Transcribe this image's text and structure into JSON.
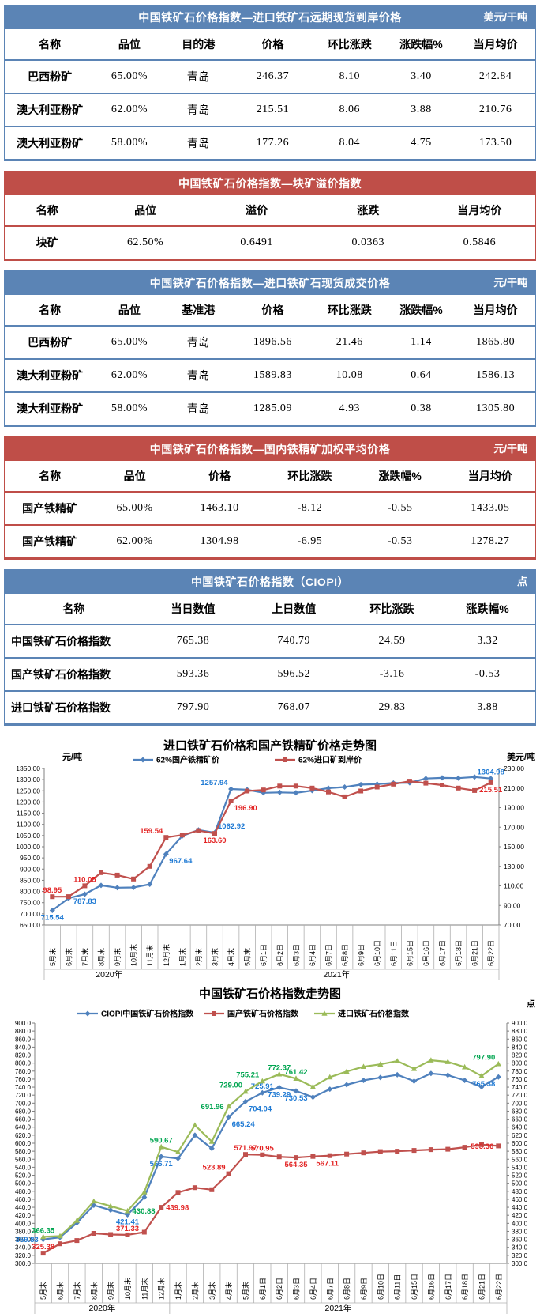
{
  "tables": [
    {
      "theme": "blue",
      "accent": "#5b84b5",
      "title": "中国铁矿石价格指数—进口铁矿石远期现货到岸价格",
      "unit": "美元/干吨",
      "headers": [
        "名称",
        "品位",
        "目的港",
        "价格",
        "环比涨跌",
        "涨跌幅%",
        "当月均价"
      ],
      "rows": [
        [
          "巴西粉矿",
          "65.00%",
          "青岛",
          "246.37",
          "8.10",
          "3.40",
          "242.84"
        ],
        [
          "澳大利亚粉矿",
          "62.00%",
          "青岛",
          "215.51",
          "8.06",
          "3.88",
          "210.76"
        ],
        [
          "澳大利亚粉矿",
          "58.00%",
          "青岛",
          "177.26",
          "8.04",
          "4.75",
          "173.50"
        ]
      ]
    },
    {
      "theme": "red",
      "accent": "#bf4e48",
      "title": "中国铁矿石价格指数—块矿溢价指数",
      "unit": "",
      "headers": [
        "名称",
        "品位",
        "溢价",
        "涨跌",
        "当月均价"
      ],
      "rows": [
        [
          "块矿",
          "62.50%",
          "0.6491",
          "0.0363",
          "0.5846"
        ]
      ]
    },
    {
      "theme": "blue",
      "accent": "#5b84b5",
      "title": "中国铁矿石价格指数—进口铁矿石现货成交价格",
      "unit": "元/干吨",
      "headers": [
        "名称",
        "品位",
        "基准港",
        "价格",
        "环比涨跌",
        "涨跌幅%",
        "当月均价"
      ],
      "rows": [
        [
          "巴西粉矿",
          "65.00%",
          "青岛",
          "1896.56",
          "21.46",
          "1.14",
          "1865.80"
        ],
        [
          "澳大利亚粉矿",
          "62.00%",
          "青岛",
          "1589.83",
          "10.08",
          "0.64",
          "1586.13"
        ],
        [
          "澳大利亚粉矿",
          "58.00%",
          "青岛",
          "1285.09",
          "4.93",
          "0.38",
          "1305.80"
        ]
      ]
    },
    {
      "theme": "red",
      "accent": "#bf4e48",
      "title": "中国铁矿石价格指数—国内铁精矿加权平均价格",
      "unit": "元/干吨",
      "headers": [
        "名称",
        "品位",
        "价格",
        "环比涨跌",
        "涨跌幅%",
        "当月均价"
      ],
      "rows": [
        [
          "国产铁精矿",
          "65.00%",
          "1463.10",
          "-8.12",
          "-0.55",
          "1433.05"
        ],
        [
          "国产铁精矿",
          "62.00%",
          "1304.98",
          "-6.95",
          "-0.53",
          "1278.27"
        ]
      ]
    },
    {
      "theme": "blue",
      "accent": "#5b84b5",
      "title": "中国铁矿石价格指数（CIOPI）",
      "unit": "点",
      "headers": [
        "名称",
        "当日数值",
        "上日数值",
        "环比涨跌",
        "涨跌幅%"
      ],
      "rows": [
        [
          "中国铁矿石价格指数",
          "765.38",
          "740.79",
          "24.59",
          "3.32"
        ],
        [
          "国产铁矿石价格指数",
          "593.36",
          "596.52",
          "-3.16",
          "-0.53"
        ],
        [
          "进口铁矿石价格指数",
          "797.90",
          "768.07",
          "29.83",
          "3.88"
        ]
      ]
    }
  ],
  "chart_data": [
    {
      "type": "line",
      "title": "进口铁矿石价格和国产铁精矿价格走势图",
      "left_axis": {
        "label": "元/吨",
        "min": 650,
        "max": 1350,
        "step": 50,
        "decimals": 2
      },
      "right_axis": {
        "label": "美元/吨",
        "min": 70,
        "max": 230,
        "step": 20,
        "decimals": 2
      },
      "categories": [
        "5月末",
        "6月末",
        "7月末",
        "8月末",
        "9月末",
        "10月末",
        "11月末",
        "12月末",
        "1月末",
        "2月末",
        "3月末",
        "4月末",
        "5月末",
        "6月1日",
        "6月2日",
        "6月3日",
        "6月4日",
        "6月7日",
        "6月8日",
        "6月9日",
        "6月10日",
        "6月11日",
        "6月15日",
        "6月16日",
        "6月17日",
        "6月18日",
        "6月21日",
        "6月22日"
      ],
      "year_groups": [
        {
          "label": "2020年",
          "from": 0,
          "to": 7
        },
        {
          "label": "2021年",
          "from": 8,
          "to": 27
        }
      ],
      "legend_position": "top",
      "grid": false,
      "series": [
        {
          "name": "62%国产铁精矿价",
          "axis": "left",
          "color": "#4f81bd",
          "label_color": "#1f7ad4",
          "marker": "diamond",
          "values": [
            715.54,
            770,
            787.83,
            827,
            817,
            818,
            832,
            967.64,
            1048,
            1075,
            1062.92,
            1257.94,
            1255,
            1241,
            1243,
            1241,
            1251,
            1262,
            1267,
            1278,
            1280,
            1285,
            1286,
            1305,
            1308,
            1307,
            1311.93,
            1304.98
          ],
          "point_labels": [
            {
              "index": 0,
              "text": "715.54",
              "pos": "b"
            },
            {
              "index": 2,
              "text": "787.83",
              "pos": "b"
            },
            {
              "index": 7,
              "text": "967.64",
              "pos": "br"
            },
            {
              "index": 10,
              "text": "1062.92",
              "pos": "ar"
            },
            {
              "index": 11,
              "text": "1257.94",
              "pos": "al"
            },
            {
              "index": 27,
              "text": "1304.98",
              "pos": "a"
            }
          ]
        },
        {
          "name": "62%进口矿到岸价",
          "axis": "right",
          "color": "#c0504d",
          "label_color": "#e32424",
          "marker": "square",
          "values": [
            98.95,
            99,
            110.05,
            123.5,
            121,
            117,
            130,
            159.54,
            162,
            166.5,
            163.6,
            196.9,
            207,
            208,
            212,
            212,
            210,
            206,
            201,
            207,
            211,
            214,
            217,
            215,
            213,
            210,
            207.45,
            215.51
          ],
          "point_labels": [
            {
              "index": 0,
              "text": "98.95",
              "pos": "a"
            },
            {
              "index": 2,
              "text": "110.05",
              "pos": "a"
            },
            {
              "index": 7,
              "text": "159.54",
              "pos": "al"
            },
            {
              "index": 10,
              "text": "163.60",
              "pos": "b"
            },
            {
              "index": 11,
              "text": "196.90",
              "pos": "br"
            },
            {
              "index": 27,
              "text": "215.51",
              "pos": "b"
            }
          ]
        }
      ]
    },
    {
      "type": "line",
      "title": "中国铁矿石价格指数走势图",
      "left_axis": {
        "label": "",
        "min": 300,
        "max": 900,
        "step": 20,
        "decimals": 1
      },
      "right_axis": {
        "label": "点",
        "min": 300,
        "max": 900,
        "step": 20,
        "decimals": 1
      },
      "categories": [
        "5月末",
        "6月末",
        "7月末",
        "8月末",
        "9月末",
        "10月末",
        "11月末",
        "12月末",
        "1月末",
        "2月末",
        "3月末",
        "4月末",
        "5月末",
        "6月1日",
        "6月2日",
        "6月3日",
        "6月4日",
        "6月7日",
        "6月8日",
        "6月9日",
        "6月10日",
        "6月11日",
        "6月15日",
        "6月16日",
        "6月17日",
        "6月18日",
        "6月21日",
        "6月22日"
      ],
      "year_groups": [
        {
          "label": "2020年",
          "from": 0,
          "to": 7
        },
        {
          "label": "2021年",
          "from": 8,
          "to": 27
        }
      ],
      "legend_position": "top",
      "grid": false,
      "series": [
        {
          "name": "CIOPI中国铁矿石价格指数",
          "axis": "left",
          "color": "#4f81bd",
          "label_color": "#1f7ad4",
          "marker": "diamond",
          "values": [
            359.83,
            365,
            401,
            445,
            433,
            421.41,
            465,
            566.71,
            562,
            620,
            587,
            665.24,
            704.04,
            725.91,
            739.29,
            730.53,
            715,
            735,
            746,
            757,
            764,
            771,
            755,
            774,
            770,
            757,
            740.79,
            765.38
          ],
          "point_labels": [
            {
              "index": 0,
              "text": "359.83",
              "pos": "l"
            },
            {
              "index": 5,
              "text": "421.41",
              "pos": "b"
            },
            {
              "index": 7,
              "text": "566.71",
              "pos": "b"
            },
            {
              "index": 11,
              "text": "665.24",
              "pos": "br"
            },
            {
              "index": 12,
              "text": "704.04",
              "pos": "br"
            },
            {
              "index": 13,
              "text": "725.91",
              "pos": "a"
            },
            {
              "index": 14,
              "text": "739.29",
              "pos": "b"
            },
            {
              "index": 15,
              "text": "730.53",
              "pos": "b"
            },
            {
              "index": 27,
              "text": "765.38",
              "pos": "bl"
            }
          ]
        },
        {
          "name": "国产铁矿石价格指数",
          "axis": "left",
          "color": "#c0504d",
          "label_color": "#e32424",
          "marker": "square",
          "values": [
            325.38,
            349,
            357,
            375,
            372,
            371.33,
            378,
            439.98,
            477,
            489,
            484,
            523.89,
            571.97,
            570.95,
            566,
            564.35,
            567.11,
            569,
            573,
            576,
            579,
            580,
            582,
            584,
            585,
            590,
            596.52,
            593.36
          ],
          "point_labels": [
            {
              "index": 0,
              "text": "325.38",
              "pos": "a"
            },
            {
              "index": 5,
              "text": "371.33",
              "pos": "a"
            },
            {
              "index": 7,
              "text": "439.98",
              "pos": "r"
            },
            {
              "index": 11,
              "text": "523.89",
              "pos": "al"
            },
            {
              "index": 12,
              "text": "571.97",
              "pos": "a"
            },
            {
              "index": 13,
              "text": "570.95",
              "pos": "a"
            },
            {
              "index": 15,
              "text": "564.35",
              "pos": "b"
            },
            {
              "index": 16,
              "text": "567.11",
              "pos": "br"
            },
            {
              "index": 27,
              "text": "593.36",
              "pos": "l"
            }
          ]
        },
        {
          "name": "进口铁矿石价格指数",
          "axis": "left",
          "color": "#9bbb59",
          "label_color": "#00a550",
          "marker": "triangle",
          "values": [
            366.35,
            368,
            407,
            455,
            443,
            430.88,
            478,
            590.67,
            578,
            645,
            604,
            691.96,
            729.0,
            755.21,
            772.37,
            761.42,
            741,
            765,
            779,
            791,
            797,
            805,
            786,
            807,
            803,
            790,
            768.07,
            797.9
          ],
          "point_labels": [
            {
              "index": 0,
              "text": "366.35",
              "pos": "a"
            },
            {
              "index": 5,
              "text": "430.88",
              "pos": "r"
            },
            {
              "index": 7,
              "text": "590.67",
              "pos": "a"
            },
            {
              "index": 11,
              "text": "691.96",
              "pos": "l"
            },
            {
              "index": 12,
              "text": "729.00",
              "pos": "al"
            },
            {
              "index": 13,
              "text": "755.21",
              "pos": "al"
            },
            {
              "index": 14,
              "text": "772.37",
              "pos": "a"
            },
            {
              "index": 15,
              "text": "761.42",
              "pos": "a"
            },
            {
              "index": 27,
              "text": "797.90",
              "pos": "al"
            }
          ]
        }
      ]
    }
  ]
}
